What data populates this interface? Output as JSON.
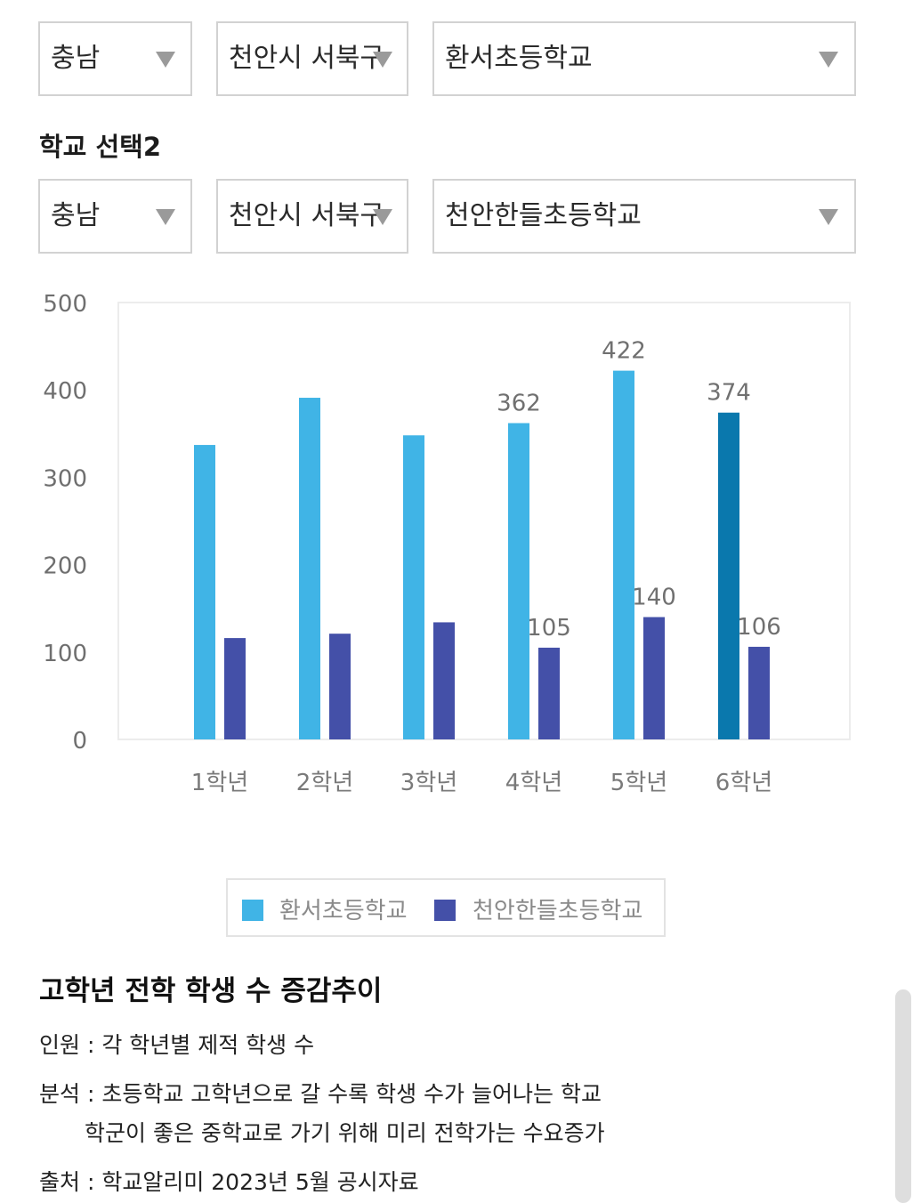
{
  "selector1": {
    "region": "충남",
    "district": "천안시 서북구",
    "school": "환서초등학교"
  },
  "selector2": {
    "title": "학교 선택2",
    "region": "충남",
    "district": "천안시 서북구",
    "school": "천안한들초등학교"
  },
  "chart_data": {
    "type": "bar",
    "categories": [
      "1학년",
      "2학년",
      "3학년",
      "4학년",
      "5학년",
      "6학년"
    ],
    "series": [
      {
        "name": "환서초등학교",
        "values": [
          337,
          391,
          348,
          362,
          422,
          374
        ],
        "color": "#40b4e6"
      },
      {
        "name": "천안한들초등학교",
        "values": [
          116,
          121,
          134,
          105,
          140,
          106
        ],
        "color": "#4450a8"
      }
    ],
    "highlight": {
      "series": 0,
      "index": 5,
      "color": "#0a78ad"
    },
    "data_labels": [
      {
        "series": 0,
        "index": 3,
        "text": "362"
      },
      {
        "series": 0,
        "index": 4,
        "text": "422"
      },
      {
        "series": 0,
        "index": 5,
        "text": "374"
      },
      {
        "series": 1,
        "index": 3,
        "text": "105"
      },
      {
        "series": 1,
        "index": 4,
        "text": "140"
      },
      {
        "series": 1,
        "index": 5,
        "text": "106"
      }
    ],
    "yticks": [
      "0",
      "100",
      "200",
      "300",
      "400",
      "500"
    ],
    "ylim": [
      0,
      500
    ],
    "grid": false,
    "legend_position": "bottom"
  },
  "description": {
    "title": "고학년 전학 학생 수 증감추이",
    "line1": "인원 : 각 학년별 제적 학생 수",
    "line2": "분석 : 초등학교 고학년으로 갈 수록 학생 수가 늘어나는 학교",
    "line3": "학군이 좋은 중학교로 가기 위해 미리 전학가는 수요증가",
    "line4": "출처 : 학교알리미 2023년 5월 공시자료"
  }
}
